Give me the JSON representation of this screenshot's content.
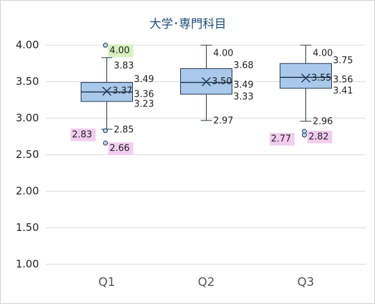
{
  "chart_data": {
    "type": "box",
    "title": "大学･専門科目",
    "categories": [
      "Q1",
      "Q2",
      "Q3"
    ],
    "ylim": [
      1,
      4
    ],
    "yticks": [
      {
        "value": 1,
        "label": "1.00"
      },
      {
        "value": 1.5,
        "label": "1.50"
      },
      {
        "value": 2,
        "label": "2.00"
      },
      {
        "value": 2.5,
        "label": "2.50"
      },
      {
        "value": 3,
        "label": "3.00"
      },
      {
        "value": 3.5,
        "label": "3.50"
      },
      {
        "value": 4,
        "label": "4.00"
      }
    ],
    "grid": true,
    "color": "#a9c8ea",
    "boxes": [
      {
        "max": 3.83,
        "q3": 3.49,
        "median": 3.36,
        "q1": 3.23,
        "min": 2.85,
        "mean": 3.37,
        "value_labels": {
          "max": "3.83",
          "q3": "3.49",
          "median": "3.36",
          "q1": "3.23",
          "min": "2.85",
          "mean": "3.37"
        },
        "outliers": [
          {
            "value": 4,
            "label": "4.00",
            "highlight": "#d6f0c0"
          },
          {
            "value": 2.83,
            "label": "2.83",
            "highlight": "#f2cdee"
          },
          {
            "value": 2.66,
            "label": "2.66",
            "highlight": "#f2cdee"
          }
        ]
      },
      {
        "max": 4,
        "q3": 3.68,
        "median": 3.49,
        "q1": 3.33,
        "min": 2.97,
        "mean": 3.5,
        "value_labels": {
          "max": "4.00",
          "q3": "3.68",
          "median": "3.49",
          "q1": "3.33",
          "min": "2.97",
          "mean": "3.50"
        },
        "outliers": []
      },
      {
        "max": 4,
        "q3": 3.75,
        "median": 3.56,
        "q1": 3.41,
        "min": 2.96,
        "mean": 3.55,
        "value_labels": {
          "max": "4.00",
          "q3": "3.75",
          "median": "3.56",
          "q1": "3.41",
          "min": "2.96",
          "mean": "3.55"
        },
        "outliers": [
          {
            "value": 2.82,
            "label": "2.82",
            "highlight": "#f2cdee"
          },
          {
            "value": 2.77,
            "label": "2.77",
            "highlight": "#f2cdee"
          }
        ]
      }
    ]
  }
}
